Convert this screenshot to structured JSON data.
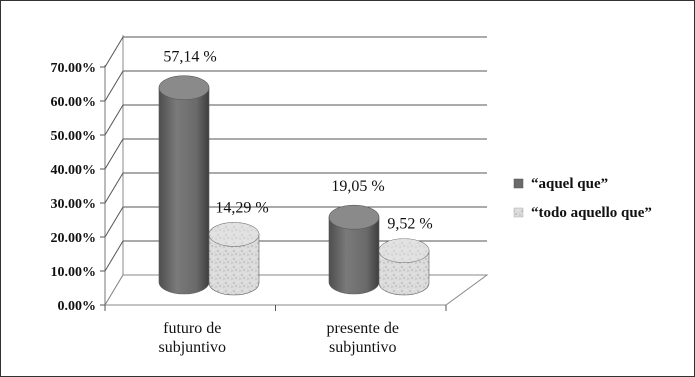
{
  "chart_data": {
    "type": "bar",
    "style": "3d-cylinder",
    "categories": [
      [
        "futuro de",
        "subjuntivo"
      ],
      [
        "presente de",
        "subjuntivo"
      ]
    ],
    "series": [
      {
        "name": "“aquel que”",
        "values": [
          57.14,
          19.05
        ],
        "labels": [
          "57,14 %",
          "19,05 %"
        ],
        "color": "#6f6f6f"
      },
      {
        "name": "“todo aquello que”",
        "values": [
          14.29,
          9.52
        ],
        "labels": [
          "14,29 %",
          "9,52 %"
        ],
        "color": "#d9d9d9"
      }
    ],
    "yticks": [
      "0.00%",
      "10.00%",
      "20.00%",
      "30.00%",
      "40.00%",
      "50.00%",
      "60.00%",
      "70.00%"
    ],
    "ylim": [
      0,
      70
    ],
    "grid": true,
    "legend_position": "right"
  }
}
